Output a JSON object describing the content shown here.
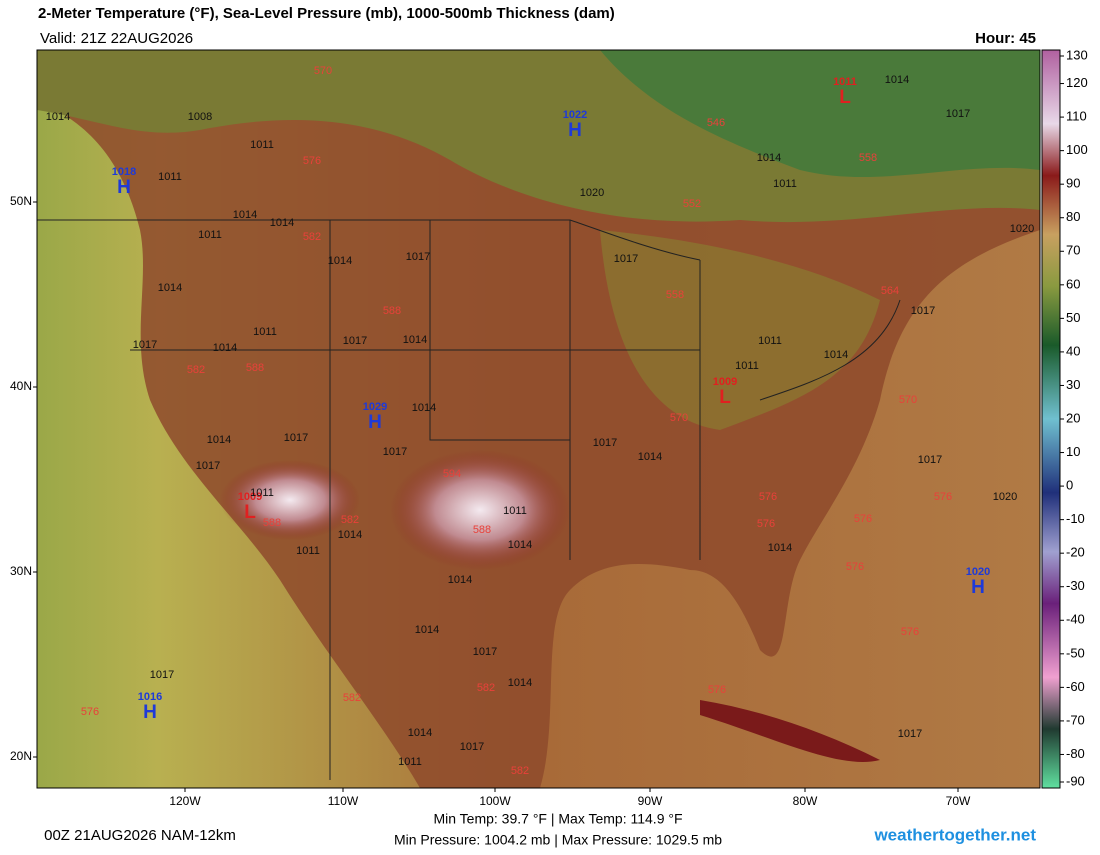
{
  "header": {
    "title": "2-Meter Temperature (°F), Sea-Level Pressure (mb), 1000-500mb Thickness (dam)",
    "valid": "Valid: 21Z 22AUG2026",
    "hour": "Hour: 45"
  },
  "colorbar": {
    "ticks": [
      130,
      120,
      110,
      100,
      90,
      80,
      70,
      60,
      50,
      40,
      30,
      20,
      10,
      0,
      -10,
      -20,
      -30,
      -40,
      -50,
      -60,
      -70,
      -80,
      -90
    ]
  },
  "lat_labels": [
    "50N",
    "40N",
    "30N",
    "20N"
  ],
  "lon_labels": [
    "120W",
    "110W",
    "100W",
    "90W",
    "80W",
    "70W"
  ],
  "pressure_centers": [
    {
      "letter": "H",
      "value": 1018
    },
    {
      "letter": "H",
      "value": 1022
    },
    {
      "letter": "H",
      "value": 1029
    },
    {
      "letter": "H",
      "value": 1020
    },
    {
      "letter": "H",
      "value": 1016
    },
    {
      "letter": "L",
      "value": 1011
    },
    {
      "letter": "L",
      "value": 1009
    },
    {
      "letter": "L",
      "value": 1009
    }
  ],
  "isobar_labels": [
    1014,
    1008,
    1011,
    1011,
    1014,
    1011,
    1014,
    1011,
    1014,
    1017,
    1014,
    1017,
    1011,
    1011,
    1014,
    1014,
    1014,
    1017,
    1014,
    1014,
    1017,
    1011,
    1017,
    1014,
    1014,
    1017,
    1017,
    1014,
    1014,
    1017,
    1017,
    1011,
    1014,
    1017,
    1014,
    1020,
    1017,
    1014,
    1011,
    1014,
    1017,
    1020,
    1017,
    1014,
    1011,
    1011,
    1017,
    1020,
    1014,
    1017
  ],
  "thickness_labels": [
    570,
    576,
    582,
    588,
    582,
    588,
    594,
    588,
    582,
    588,
    582,
    582,
    582,
    576,
    546,
    552,
    558,
    558,
    564,
    570,
    570,
    576,
    576,
    576,
    576,
    576,
    576,
    576
  ],
  "footer": {
    "run": "00Z 21AUG2026 NAM-12km",
    "temp": "Min Temp:  39.7 °F | Max Temp: 114.9 °F",
    "pressure": "Min Pressure: 1004.2 mb | Max Pressure: 1029.5 mb",
    "site": "weathertogether.net"
  }
}
